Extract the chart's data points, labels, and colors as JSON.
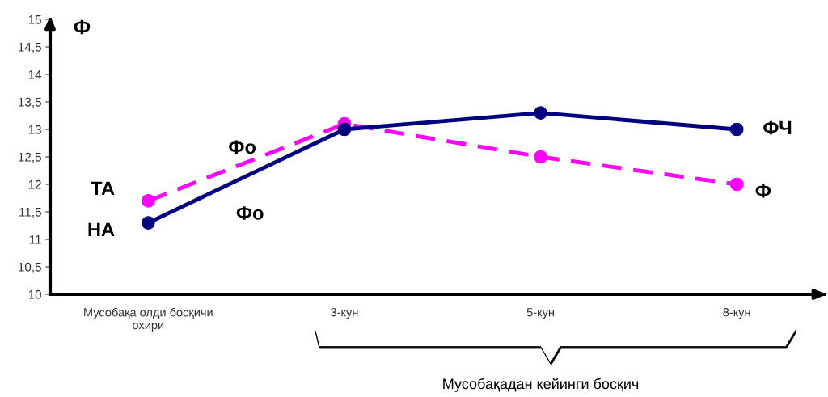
{
  "chart_data": {
    "type": "line",
    "categories": [
      "Мусобақа олди босқичи\nохири",
      "3-кун",
      "5-кун",
      "8-кун"
    ],
    "series": [
      {
        "name": "НА",
        "color": "#000080",
        "values": [
          11.3,
          13.0,
          13.3,
          13.0
        ],
        "line_style": "solid"
      },
      {
        "name": "ТА",
        "color": "#ff00ff",
        "values": [
          11.7,
          13.1,
          12.5,
          12.0
        ],
        "line_style": "dashed"
      }
    ],
    "ylabel": "Ф",
    "xlabel": "Мусобақадан кейинги босқич",
    "ylim": [
      10,
      15
    ],
    "yticks": [
      10,
      {
        "value": 10.5,
        "label": "10,5"
      },
      11,
      {
        "value": 11.5,
        "label": "11,5"
      },
      12,
      {
        "value": 12.5,
        "label": "12,5"
      },
      13,
      {
        "value": 13.5,
        "label": "13,5"
      },
      14,
      {
        "value": 14.5,
        "label": "14,5"
      },
      15
    ],
    "annotations": [
      "Фо",
      "Фо",
      "ФЧ",
      "Ф"
    ],
    "marker": "circle",
    "grid": false,
    "legend": false
  }
}
